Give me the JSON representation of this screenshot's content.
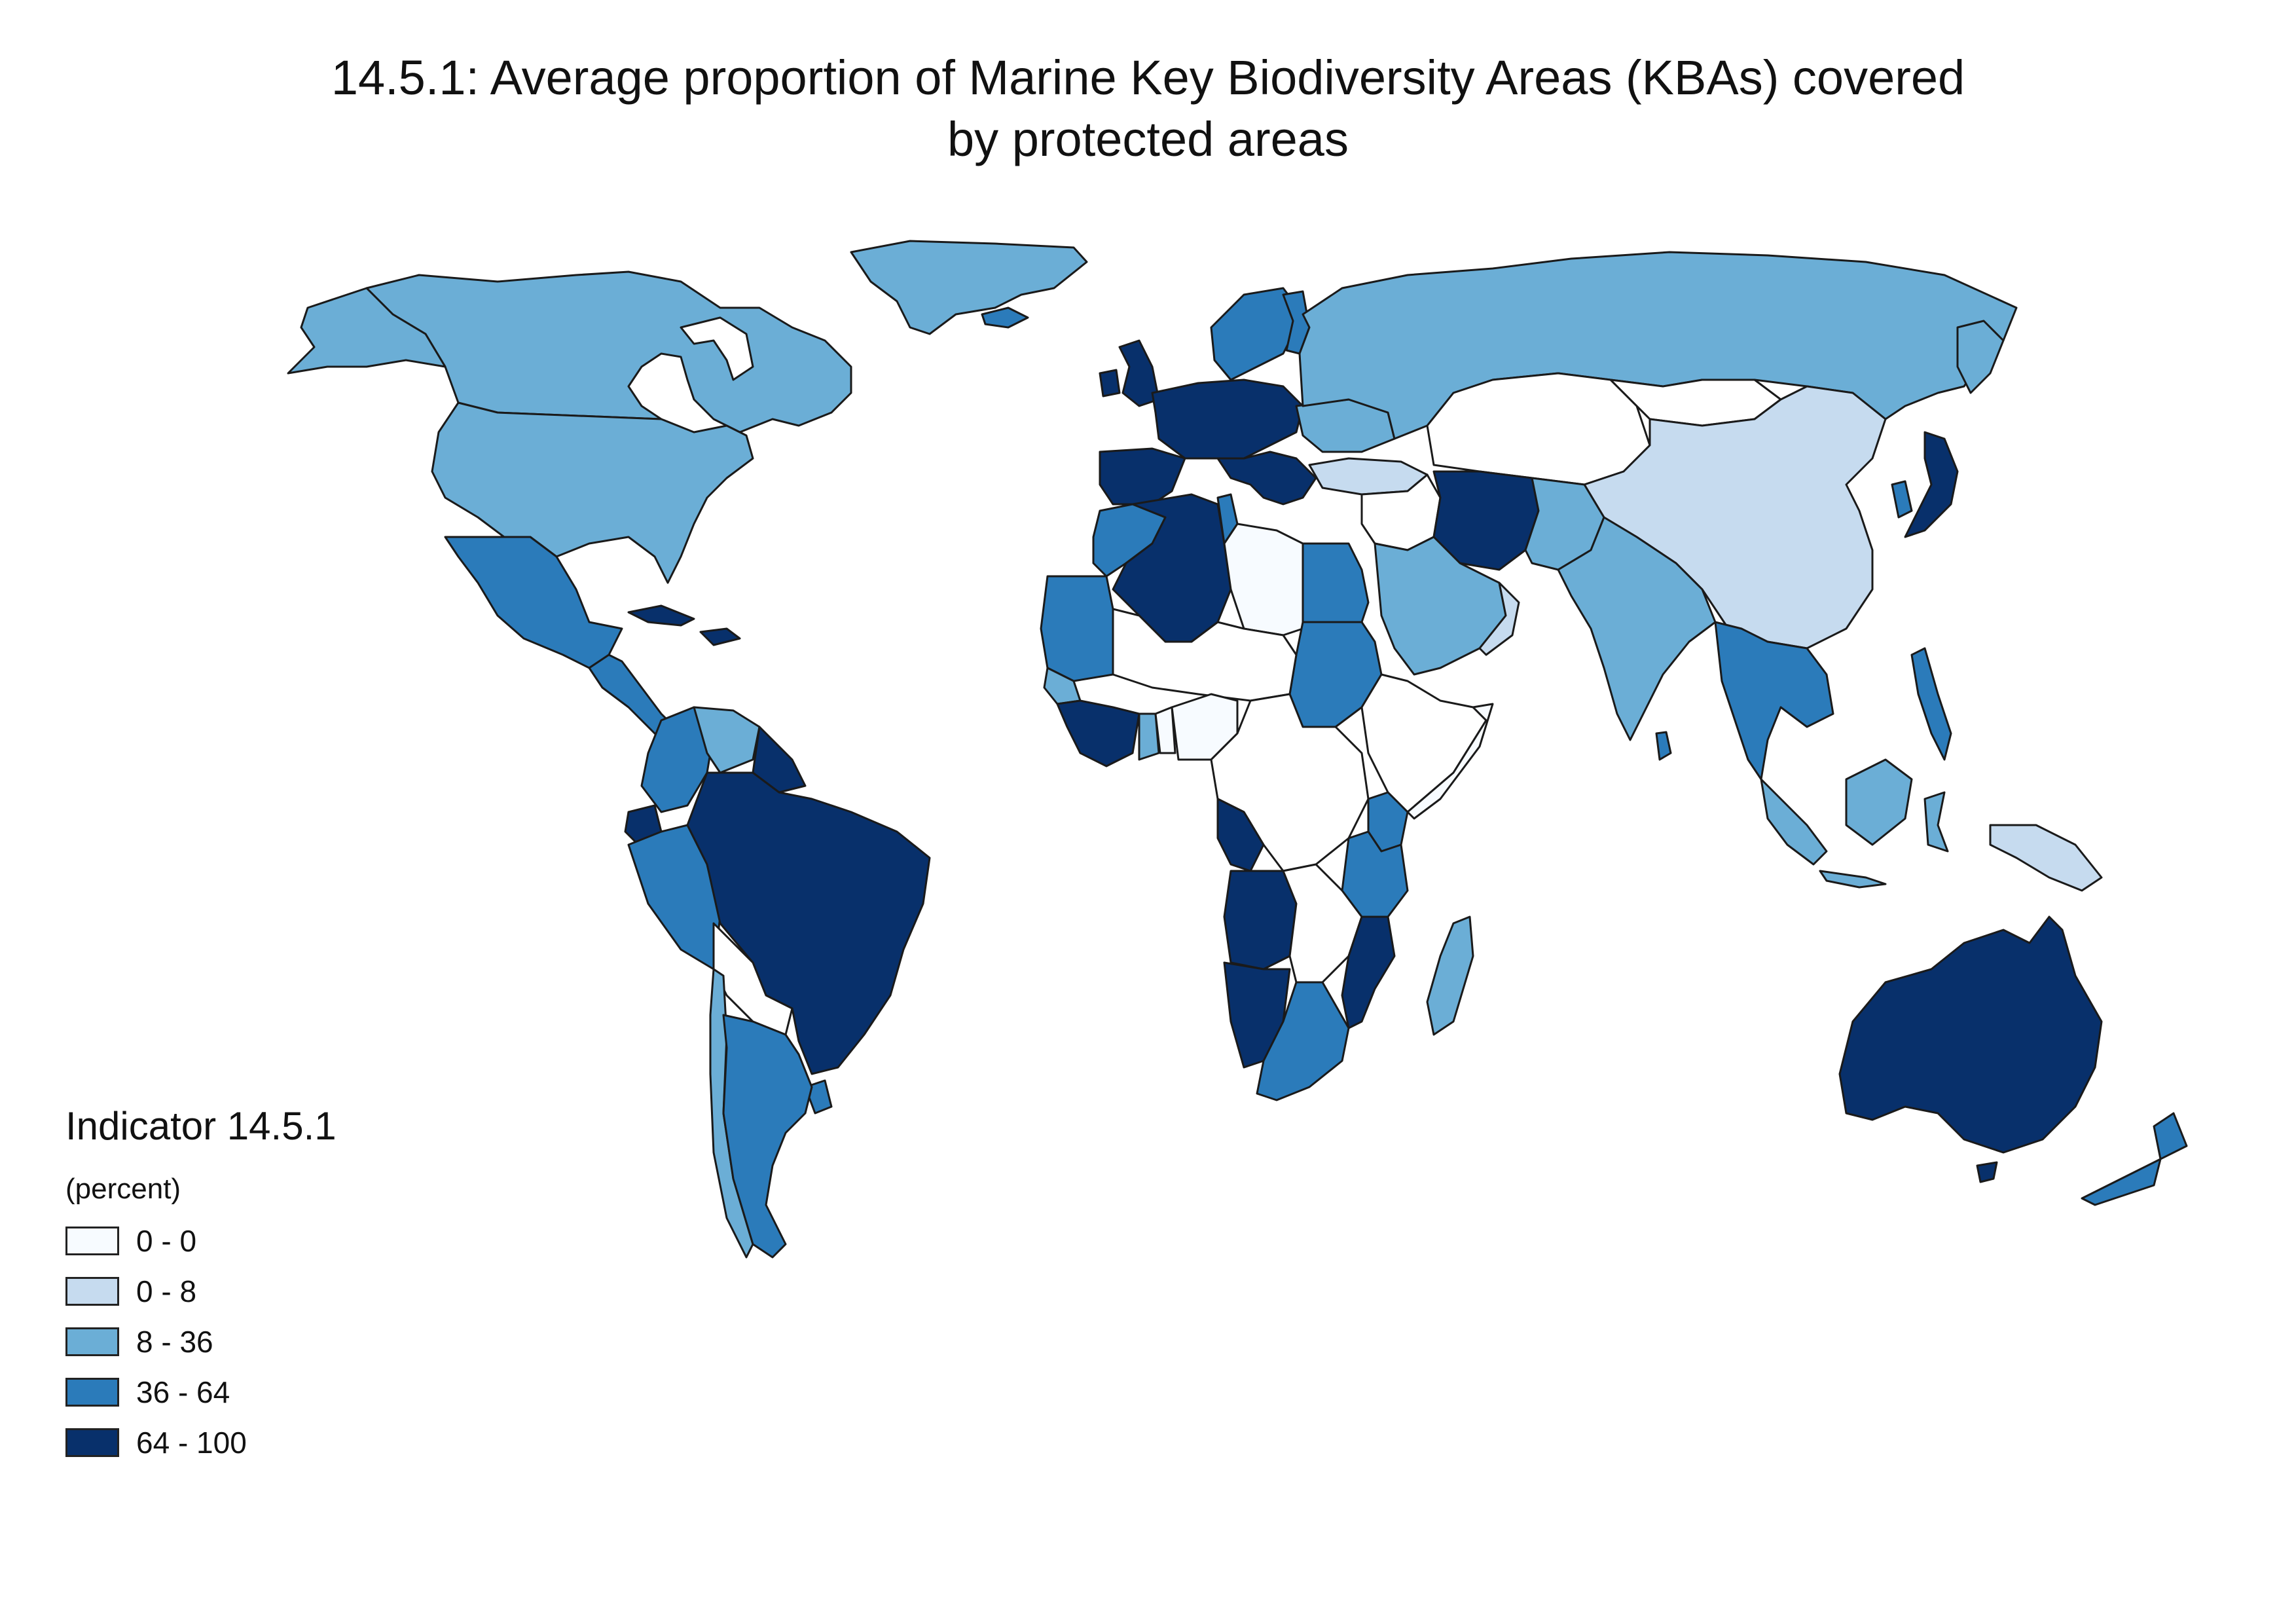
{
  "title": {
    "line1": "14.5.1: Average proportion of Marine Key Biodiversity Areas (KBAs) covered",
    "line2": "by protected areas"
  },
  "legend": {
    "title": "Indicator 14.5.1",
    "unit": "(percent)",
    "classes": [
      {
        "label": "0 - 0",
        "color": "#f7fbff"
      },
      {
        "label": "0 - 8",
        "color": "#c6dbef"
      },
      {
        "label": "8 - 36",
        "color": "#6baed6"
      },
      {
        "label": "36 - 64",
        "color": "#2b7bba"
      },
      {
        "label": "64 - 100",
        "color": "#08306b"
      }
    ],
    "no_data_color": "#ffffff"
  }
}
